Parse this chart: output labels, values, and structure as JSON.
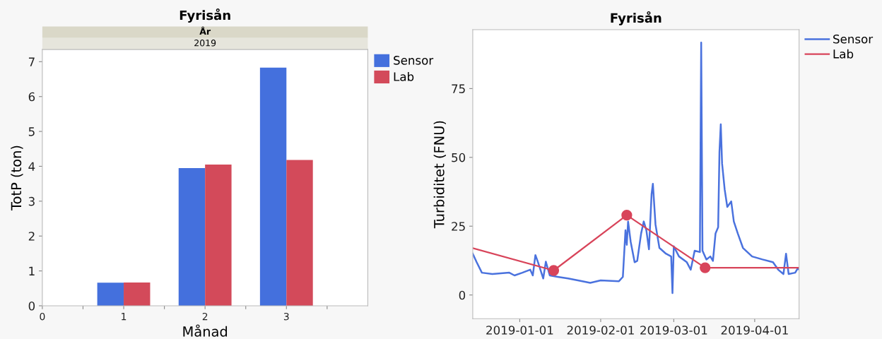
{
  "chart_data": [
    {
      "type": "bar",
      "title": "Fyrisån",
      "annotations": [
        "År",
        "2019"
      ],
      "xlabel": "Månad",
      "ylabel": "TotP (ton)",
      "x": [
        1,
        2,
        3
      ],
      "xlim": [
        0,
        4
      ],
      "xticks": [
        0,
        {
          "value": 0.5,
          "label": null
        },
        1,
        {
          "value": 1.5,
          "label": null
        },
        2,
        {
          "value": 2.5,
          "label": null
        },
        3,
        {
          "value": 3.5,
          "label": null
        }
      ],
      "ylim": [
        0,
        7.35
      ],
      "yticks": [
        0,
        1,
        2,
        3,
        4,
        5,
        6,
        7
      ],
      "grid": false,
      "legend": "right",
      "series": [
        {
          "name": "Sensor",
          "color": "#4470dd",
          "values": [
            0.66,
            3.95,
            6.83
          ]
        },
        {
          "name": "Lab",
          "color": "#d34a5a",
          "values": [
            0.67,
            4.05,
            4.18
          ]
        }
      ]
    },
    {
      "type": "line",
      "title": "Fyrisån",
      "ylabel": "Turbiditet (FNU)",
      "xlim": [
        "2018-12-14",
        "2019-04-18"
      ],
      "xticks": [
        "2019-01-01",
        "2019-02-01",
        "2019-03-01",
        "2019-04-01"
      ],
      "ylim": [
        -8.6,
        96.4
      ],
      "yticks": [
        0,
        25,
        50,
        75
      ],
      "grid": false,
      "legend": "right",
      "series": [
        {
          "name": "Sensor",
          "color": "#4a72de",
          "marker": "none",
          "x": [
            "2018-12-14",
            "2018-12-15T12:00",
            "2018-12-17T12:00",
            "2018-12-21T12:00",
            "2018-12-28",
            "2018-12-30",
            "2019-01-02",
            "2019-01-05",
            "2019-01-06",
            "2019-01-07",
            "2019-01-08",
            "2019-01-10",
            "2019-01-11",
            "2019-01-12T12:00",
            "2019-01-15T12:00",
            "2019-01-19T12:00",
            "2019-01-25",
            "2019-01-28",
            "2019-02-01",
            "2019-02-08",
            "2019-02-09T12:00",
            "2019-02-10T12:00",
            "2019-02-11",
            "2019-02-11T12:00",
            "2019-02-12T12:00",
            "2019-02-14",
            "2019-02-15",
            "2019-02-16T12:00",
            "2019-02-17T12:00",
            "2019-02-18T12:00",
            "2019-02-19T12:00",
            "2019-02-20T12:00",
            "2019-02-21",
            "2019-02-22",
            "2019-02-23T12:00",
            "2019-02-26",
            "2019-02-28",
            "2019-02-28T12:00",
            "2019-03-01",
            "2019-03-03",
            "2019-03-06",
            "2019-03-07T12:00",
            "2019-03-09",
            "2019-03-11",
            "2019-03-11T12:00",
            "2019-03-12",
            "2019-03-13T12:00",
            "2019-03-15",
            "2019-03-16",
            "2019-03-17",
            "2019-03-18",
            "2019-03-18T12:00",
            "2019-03-19",
            "2019-03-19T12:00",
            "2019-03-20T12:00",
            "2019-03-21T12:00",
            "2019-03-23",
            "2019-03-24",
            "2019-03-25T12:00",
            "2019-03-27T12:00",
            "2019-03-31",
            "2019-04-04",
            "2019-04-08",
            "2019-04-10",
            "2019-04-12",
            "2019-04-13",
            "2019-04-14",
            "2019-04-16T12:00",
            "2019-04-17T12:00",
            "2019-04-18"
          ],
          "values": [
            15.0,
            11.9,
            8.1,
            7.6,
            8.1,
            7.1,
            8.1,
            9.2,
            7.1,
            14.5,
            11.9,
            6.0,
            12.1,
            7.1,
            6.6,
            6.0,
            5.0,
            4.4,
            5.3,
            5.0,
            6.6,
            23.5,
            18.2,
            26.7,
            19.3,
            11.9,
            12.4,
            22.4,
            26.7,
            23.5,
            16.6,
            36.7,
            40.4,
            25.6,
            17.1,
            15.0,
            14.0,
            0.7,
            17.7,
            14.0,
            11.9,
            9.2,
            16.1,
            15.6,
            91.7,
            16.1,
            12.9,
            14.0,
            12.4,
            22.4,
            24.6,
            52.0,
            62.0,
            47.8,
            38.3,
            32.0,
            34.0,
            26.7,
            22.4,
            17.1,
            14.0,
            12.9,
            11.9,
            9.2,
            7.6,
            15.0,
            7.6,
            8.1,
            9.7,
            9.2
          ]
        },
        {
          "name": "Lab",
          "color": "#d8445a",
          "marker": "circle",
          "x": [
            "2018-12-14",
            "2019-01-14",
            "2019-02-11",
            "2019-03-13",
            "2019-04-18"
          ],
          "values": [
            17.0,
            8.9,
            29.0,
            9.9,
            9.9
          ]
        }
      ]
    }
  ]
}
